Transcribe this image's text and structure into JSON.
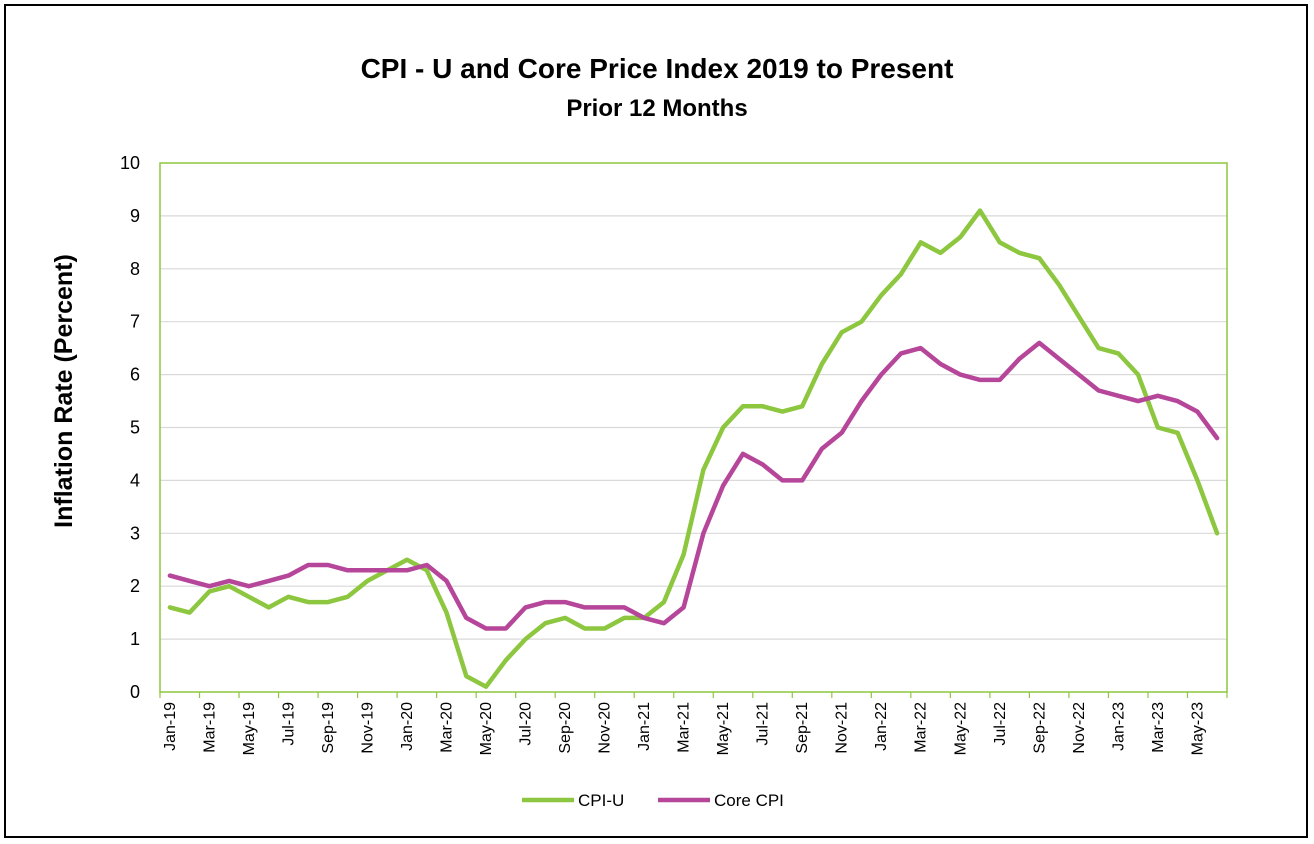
{
  "chart_data": {
    "type": "line",
    "title": "CPI - U and Core Price Index 2019 to Present",
    "subtitle": "Prior 12 Months",
    "xlabel": "",
    "ylabel": "Inflation Rate (Percent)",
    "ylim": [
      0,
      10
    ],
    "yticks": [
      "0",
      "1",
      "2",
      "3",
      "4",
      "5",
      "6",
      "7",
      "8",
      "9",
      "10"
    ],
    "grid": true,
    "legend_position": "bottom",
    "x": [
      "Jan-19",
      "Feb-19",
      "Mar-19",
      "Apr-19",
      "May-19",
      "Jun-19",
      "Jul-19",
      "Aug-19",
      "Sep-19",
      "Oct-19",
      "Nov-19",
      "Dec-19",
      "Jan-20",
      "Feb-20",
      "Mar-20",
      "Apr-20",
      "May-20",
      "Jun-20",
      "Jul-20",
      "Aug-20",
      "Sep-20",
      "Oct-20",
      "Nov-20",
      "Dec-20",
      "Jan-21",
      "Feb-21",
      "Mar-21",
      "Apr-21",
      "May-21",
      "Jun-21",
      "Jul-21",
      "Aug-21",
      "Sep-21",
      "Oct-21",
      "Nov-21",
      "Dec-21",
      "Jan-22",
      "Feb-22",
      "Mar-22",
      "Apr-22",
      "May-22",
      "Jun-22",
      "Jul-22",
      "Aug-22",
      "Sep-22",
      "Oct-22",
      "Nov-22",
      "Dec-22",
      "Jan-23",
      "Feb-23",
      "Mar-23",
      "Apr-23",
      "May-23",
      "Jun-23"
    ],
    "x_tick_labels": [
      "Jan-19",
      "Mar-19",
      "May-19",
      "Jul-19",
      "Sep-19",
      "Nov-19",
      "Jan-20",
      "Mar-20",
      "May-20",
      "Jul-20",
      "Sep-20",
      "Nov-20",
      "Jan-21",
      "Mar-21",
      "May-21",
      "Jul-21",
      "Sep-21",
      "Nov-21",
      "Jan-22",
      "Mar-22",
      "May-22",
      "Jul-22",
      "Sep-22",
      "Nov-22",
      "Jan-23",
      "Mar-23",
      "May-23"
    ],
    "series": [
      {
        "name": "CPI-U",
        "color": "#8DC63F",
        "values": [
          1.6,
          1.5,
          1.9,
          2.0,
          1.8,
          1.6,
          1.8,
          1.7,
          1.7,
          1.8,
          2.1,
          2.3,
          2.5,
          2.3,
          1.5,
          0.3,
          0.1,
          0.6,
          1.0,
          1.3,
          1.4,
          1.2,
          1.2,
          1.4,
          1.4,
          1.7,
          2.6,
          4.2,
          5.0,
          5.4,
          5.4,
          5.3,
          5.4,
          6.2,
          6.8,
          7.0,
          7.5,
          7.9,
          8.5,
          8.3,
          8.6,
          9.1,
          8.5,
          8.3,
          8.2,
          7.7,
          7.1,
          6.5,
          6.4,
          6.0,
          5.0,
          4.9,
          4.0,
          3.0
        ]
      },
      {
        "name": "Core CPI",
        "color": "#B5469A",
        "values": [
          2.2,
          2.1,
          2.0,
          2.1,
          2.0,
          2.1,
          2.2,
          2.4,
          2.4,
          2.3,
          2.3,
          2.3,
          2.3,
          2.4,
          2.1,
          1.4,
          1.2,
          1.2,
          1.6,
          1.7,
          1.7,
          1.6,
          1.6,
          1.6,
          1.4,
          1.3,
          1.6,
          3.0,
          3.9,
          4.5,
          4.3,
          4.0,
          4.0,
          4.6,
          4.9,
          5.5,
          6.0,
          6.4,
          6.5,
          6.2,
          6.0,
          5.9,
          5.9,
          6.3,
          6.6,
          6.3,
          6.0,
          5.7,
          5.6,
          5.5,
          5.6,
          5.5,
          5.3,
          4.8
        ]
      }
    ],
    "colors": {
      "grid": "#D9D9D9",
      "plot_border": "#8DC63F"
    }
  }
}
